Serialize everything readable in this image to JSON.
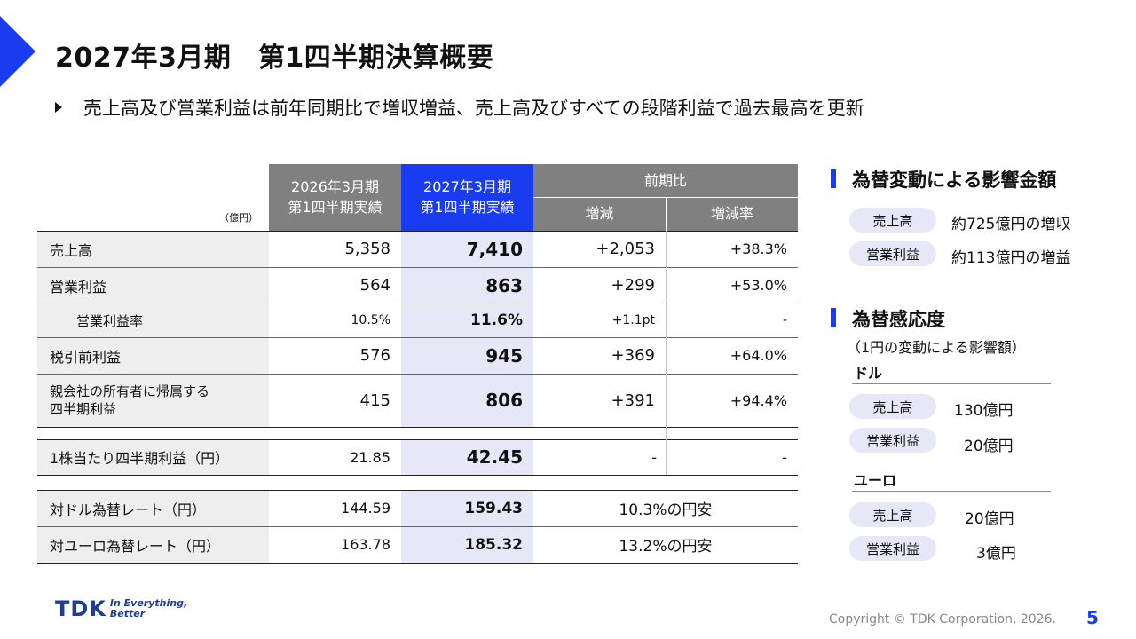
{
  "header": {
    "title": "2027年3月期　第1四半期決算概要",
    "bullet": "売上高及び営業利益は前年同期比で増収増益、売上高及びすべての段階利益で過去最高を更新"
  },
  "table": {
    "unit": "（億円）",
    "col_prev": "2026年3月期\n第1四半期実績",
    "col_curr": "2027年3月期\n第1四半期実績",
    "col_comp": "前期比",
    "col_diff": "増減",
    "col_rate": "増減率",
    "rows": [
      {
        "label": "売上高",
        "prev": "5,358",
        "curr": "7,410",
        "diff": "+2,053",
        "rate": "+38.3%"
      },
      {
        "label": "営業利益",
        "prev": "564",
        "curr": "863",
        "diff": "+299",
        "rate": "+53.0%"
      },
      {
        "label": "営業利益率",
        "prev": "10.5%",
        "curr": "11.6%",
        "diff": "+1.1pt",
        "rate": "-"
      },
      {
        "label": "税引前利益",
        "prev": "576",
        "curr": "945",
        "diff": "+369",
        "rate": "+64.0%"
      },
      {
        "label": "親会社の所有者に帰属する\n四半期利益",
        "prev": "415",
        "curr": "806",
        "diff": "+391",
        "rate": "+94.4%"
      },
      {
        "label": "1株当たり四半期利益（円）",
        "prev": "21.85",
        "curr": "42.45",
        "diff": "-",
        "rate": "-"
      },
      {
        "label": "対ドル為替レート（円）",
        "prev": "144.59",
        "curr": "159.43",
        "comp": "10.3%の円安"
      },
      {
        "label": "対ユーロ為替レート（円）",
        "prev": "163.78",
        "curr": "185.32",
        "comp": "13.2%の円安"
      }
    ]
  },
  "fx_impact": {
    "title": "為替変動による影響金額",
    "items": [
      {
        "label": "売上高",
        "value": "約725億円の増収"
      },
      {
        "label": "営業利益",
        "value": "約113億円の増益"
      }
    ]
  },
  "fx_sensitivity": {
    "title": "為替感応度",
    "note": "（1円の変動による影響額）",
    "usd": {
      "label": "ドル",
      "items": [
        {
          "label": "売上高",
          "value": "130億円"
        },
        {
          "label": "営業利益",
          "value": "20億円"
        }
      ]
    },
    "eur": {
      "label": "ユーロ",
      "items": [
        {
          "label": "売上高",
          "value": "20億円"
        },
        {
          "label": "営業利益",
          "value": "3億円"
        }
      ]
    }
  },
  "footer": {
    "logo": "TDK",
    "tagline1": "In Everything,",
    "tagline2": "Better",
    "copyright": "Copyright © TDK Corporation, 2026.",
    "page": "5"
  },
  "colors": {
    "accent": "#1a3cf0",
    "header_grey": "#808080",
    "highlight": "#e6e8f8",
    "label_bg": "#eeeeee"
  }
}
